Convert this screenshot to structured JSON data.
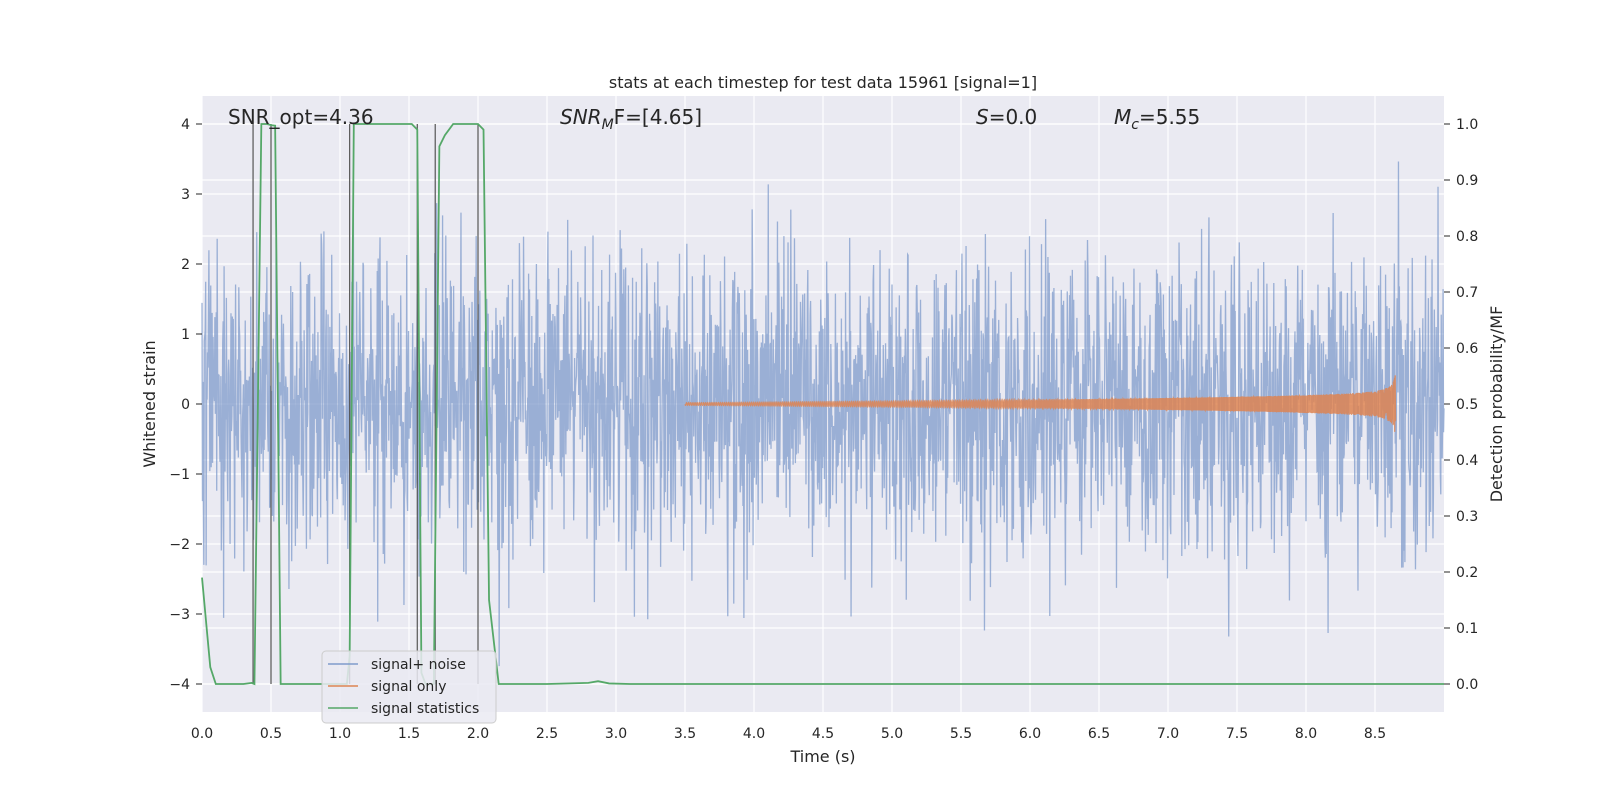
{
  "chart_data": {
    "type": "line",
    "title": "stats at each timestep for test data 15961 [signal=1]",
    "xlabel": "Time (s)",
    "ylabel_left": "Whitened strain",
    "ylabel_right": "Detection probability/MF",
    "xlim": [
      0.0,
      9.0
    ],
    "ylim_left": [
      -4.4,
      4.4
    ],
    "ylim_right": [
      -0.05,
      1.05
    ],
    "grid": true,
    "x_ticks": [
      "0.0",
      "0.5",
      "1.0",
      "1.5",
      "2.0",
      "2.5",
      "3.0",
      "3.5",
      "4.0",
      "4.5",
      "5.0",
      "5.5",
      "6.0",
      "6.5",
      "7.0",
      "7.5",
      "8.0",
      "8.5"
    ],
    "y_ticks_left": [
      "−4",
      "−3",
      "−2",
      "−1",
      "0",
      "1",
      "2",
      "3",
      "4"
    ],
    "y_ticks_right": [
      "0.0",
      "0.1",
      "0.2",
      "0.3",
      "0.4",
      "0.5",
      "0.6",
      "0.7",
      "0.8",
      "0.9",
      "1.0"
    ],
    "annotations": [
      {
        "text": "SNR_opt=4.36"
      },
      {
        "base": "SNR",
        "sub": "M",
        "rest": "F=[4.65]"
      },
      {
        "base": "S",
        "rest": "=0.0"
      },
      {
        "base": "M",
        "sub": "c",
        "rest": "=5.55"
      }
    ],
    "legend_placement": "lower-left",
    "series": [
      {
        "name": "signal+ noise",
        "color": "#7f9bcb",
        "axis": "left",
        "kind": "noise",
        "noise_std": 1.1,
        "sample_rate": 300,
        "t_range": [
          0.0,
          9.0
        ]
      },
      {
        "name": "signal only",
        "color": "#dd8452",
        "axis": "left",
        "kind": "chirp",
        "t_start": 3.5,
        "t_end": 8.65,
        "peak_amplitude": 0.55
      },
      {
        "name": "signal statistics",
        "color": "#55a868",
        "axis": "right",
        "x": [
          0.0,
          0.06,
          0.1,
          0.14,
          0.2,
          0.25,
          0.3,
          0.36,
          0.38,
          0.43,
          0.47,
          0.5,
          0.53,
          0.57,
          0.62,
          0.7,
          0.8,
          0.9,
          1.0,
          1.05,
          1.07,
          1.1,
          1.13,
          1.2,
          1.3,
          1.4,
          1.52,
          1.56,
          1.59,
          1.62,
          1.66,
          1.68,
          1.72,
          1.76,
          1.82,
          1.9,
          2.0,
          2.04,
          2.08,
          2.15,
          2.25,
          2.5,
          2.8,
          2.87,
          2.95,
          3.1,
          4.0,
          5.0,
          6.0,
          7.0,
          8.0,
          9.0
        ],
        "y": [
          0.19,
          0.03,
          0.0,
          0.0,
          0.0,
          0.0,
          0.0,
          0.002,
          0.0,
          1.0,
          1.0,
          0.998,
          0.997,
          0.0,
          0.0,
          0.0,
          0.0,
          0.0,
          0.0,
          0.0,
          0.05,
          1.0,
          1.0,
          1.0,
          1.0,
          1.0,
          1.0,
          0.99,
          0.02,
          0.0,
          0.0,
          0.0,
          0.96,
          0.98,
          1.0,
          1.0,
          1.0,
          0.99,
          0.15,
          0.0,
          0.0,
          0.0,
          0.002,
          0.005,
          0.001,
          0.0,
          0.0,
          0.0,
          0.0,
          0.0,
          0.0,
          0.0
        ]
      }
    ],
    "vertical_markers": [
      0.37,
      0.5,
      1.07,
      1.56,
      1.69,
      2.0
    ]
  }
}
